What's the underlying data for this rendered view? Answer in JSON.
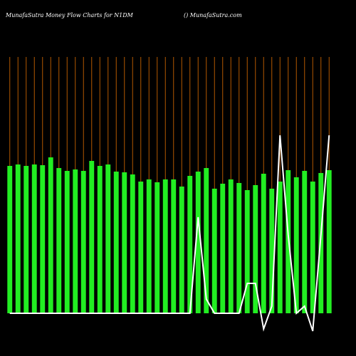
{
  "chart_data": {
    "type": "bar",
    "title": "MunafaSutra  Money Flow  Charts for N1DM",
    "subtitle": "() MunafaSutra.com",
    "categories": [
      null,
      null,
      null,
      null,
      null,
      null,
      null,
      null,
      null,
      null,
      null,
      null,
      null,
      null,
      null,
      null,
      null,
      null,
      null,
      null,
      null,
      null,
      null,
      null,
      null,
      null,
      null,
      null,
      null,
      null,
      null,
      null,
      null,
      null,
      null,
      null,
      null,
      null,
      null,
      null
    ],
    "series": [
      {
        "name": null,
        "color": "#22ee22",
        "mark": "bar",
        "values": [
          207,
          209,
          207,
          209,
          208,
          219,
          204,
          200,
          202,
          200,
          214,
          207,
          209,
          199,
          198,
          195,
          185,
          188,
          184,
          188,
          188,
          178,
          193,
          199,
          204,
          175,
          182,
          188,
          183,
          173,
          180,
          196,
          175,
          185,
          201,
          191,
          200,
          185,
          197,
          201
        ]
      },
      {
        "name": null,
        "color": "#ffffff",
        "mark": "line",
        "values": [
          0,
          0,
          0,
          0,
          0,
          0,
          0,
          0,
          0,
          0,
          0,
          0,
          0,
          0,
          0,
          0,
          0,
          0,
          0,
          0,
          0,
          0,
          0,
          135,
          20,
          0,
          0,
          0,
          0,
          42,
          42,
          -22,
          10,
          250,
          110,
          0,
          10,
          -25,
          110,
          250
        ]
      }
    ],
    "ylim": [
      -40,
      360
    ],
    "gridline_color": "#b35900"
  }
}
